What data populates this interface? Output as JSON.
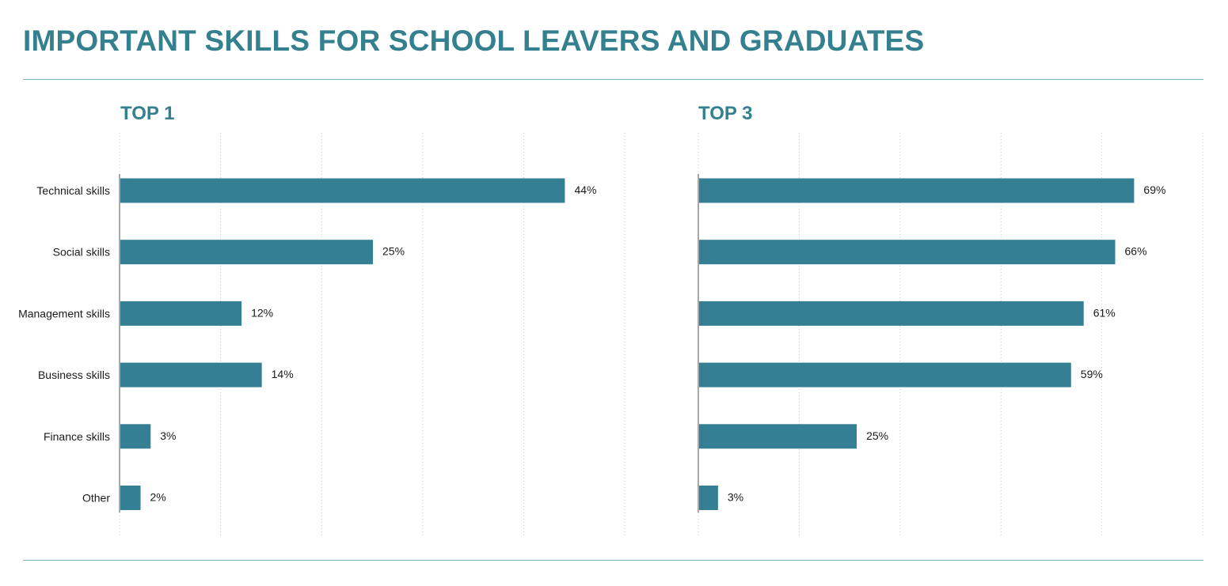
{
  "title": "IMPORTANT SKILLS FOR SCHOOL LEAVERS AND GRADUATES",
  "colors": {
    "accent": "#35808f",
    "bar": "#357f94",
    "rule": "#7fb0bb",
    "grid": "#c8c8c8"
  },
  "chart_data": [
    {
      "type": "bar",
      "orientation": "horizontal",
      "title": "TOP 1",
      "categories": [
        "Technical skills",
        "Social skills",
        "Management skills",
        "Business skills",
        "Finance skills",
        "Other"
      ],
      "values": [
        44,
        25,
        12,
        14,
        3,
        2
      ],
      "value_labels": [
        "44%",
        "25%",
        "12%",
        "14%",
        "3%",
        "2%"
      ],
      "xlim": [
        0,
        50
      ],
      "grid": true
    },
    {
      "type": "bar",
      "orientation": "horizontal",
      "title": "TOP 3",
      "categories": [
        "Technical skills",
        "Social skills",
        "Management skills",
        "Business skills",
        "Finance skills",
        "Other"
      ],
      "values": [
        69,
        66,
        61,
        59,
        25,
        3
      ],
      "value_labels": [
        "69%",
        "66%",
        "61%",
        "59%",
        "25%",
        "3%"
      ],
      "xlim": [
        0,
        80
      ],
      "grid": true
    }
  ]
}
